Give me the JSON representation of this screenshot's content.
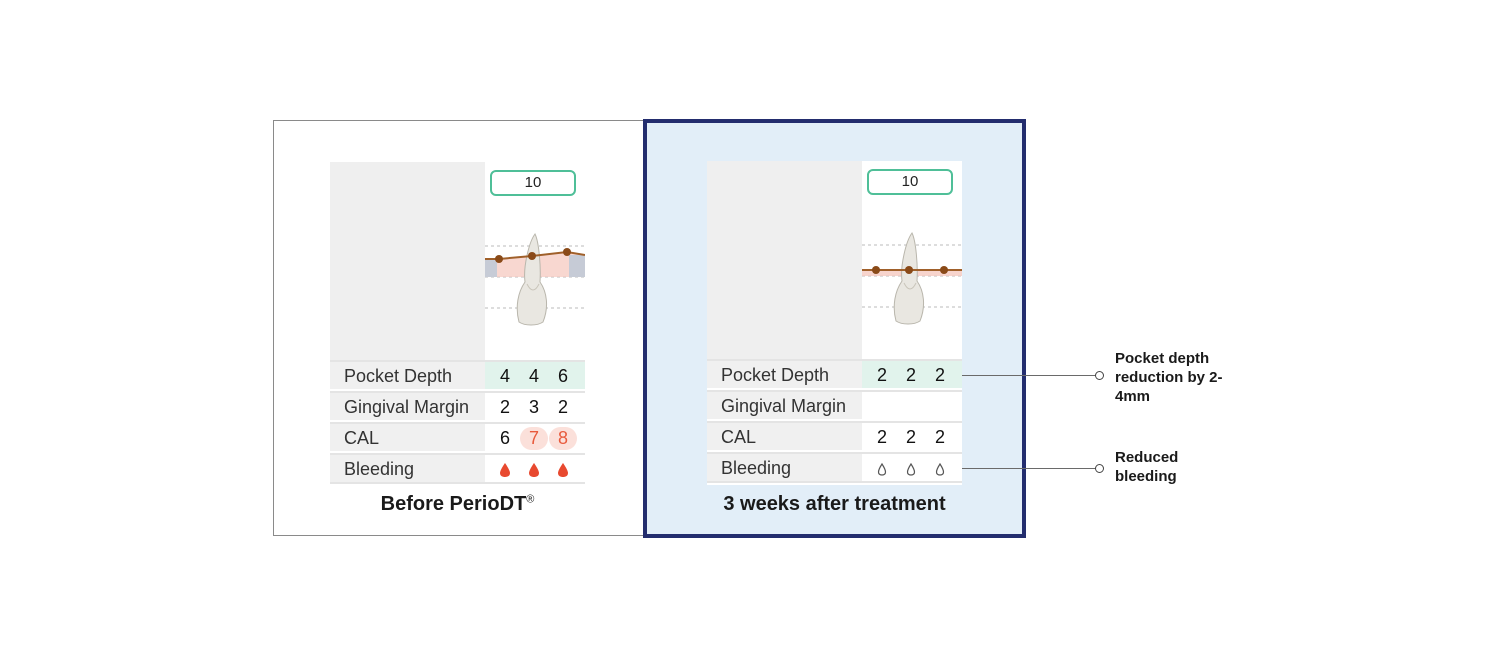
{
  "before": {
    "caption": "Before PerioDT",
    "caption_mark": "®",
    "tooth_number": "10",
    "rows": {
      "pocket_depth": {
        "label": "Pocket Depth",
        "values": [
          "4",
          "4",
          "6"
        ]
      },
      "gingival_margin": {
        "label": "Gingival Margin",
        "values": [
          "2",
          "3",
          "2"
        ]
      },
      "cal": {
        "label": "CAL",
        "values": [
          "6",
          "7",
          "8"
        ]
      },
      "bleeding": {
        "label": "Bleeding",
        "values": [
          "bleeding-drop-icon",
          "bleeding-drop-icon",
          "bleeding-drop-icon"
        ]
      }
    }
  },
  "after": {
    "caption": "3 weeks after treatment",
    "tooth_number": "10",
    "rows": {
      "pocket_depth": {
        "label": "Pocket Depth",
        "values": [
          "2",
          "2",
          "2"
        ]
      },
      "gingival_margin": {
        "label": "Gingival Margin",
        "values": [
          "",
          "",
          ""
        ]
      },
      "cal": {
        "label": "CAL",
        "values": [
          "2",
          "2",
          "2"
        ]
      },
      "bleeding": {
        "label": "Bleeding",
        "values": [
          "no-bleeding-drop-icon",
          "no-bleeding-drop-icon",
          "no-bleeding-drop-icon"
        ]
      }
    }
  },
  "callouts": {
    "pocket_depth": "Pocket depth reduction by 2-4mm",
    "bleeding": "Reduced bleeding"
  },
  "colors": {
    "after_border": "#232d6e",
    "after_background": "#e2eef8",
    "tooth_number_border": "#4fbf98",
    "bleeding": "#e8492f",
    "gum_line": "#a0602a"
  }
}
